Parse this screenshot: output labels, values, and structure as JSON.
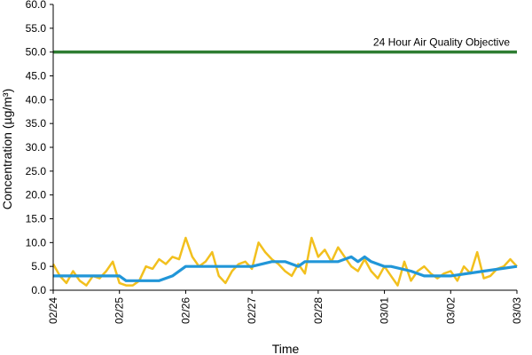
{
  "chart_data": {
    "type": "line",
    "xlabel": "Time",
    "ylabel": "Concentration (µg/m³)",
    "ylim": [
      0,
      60
    ],
    "yticks": [
      "0.0",
      "5.0",
      "10.0",
      "15.0",
      "20.0",
      "25.0",
      "30.0",
      "35.0",
      "40.0",
      "45.0",
      "50.0",
      "55.0",
      "60.0"
    ],
    "xticks": [
      "02/24",
      "02/25",
      "02/26",
      "02/27",
      "02/28",
      "03/01",
      "03/02",
      "03/03"
    ],
    "grid": false,
    "reference_line": {
      "value": 50,
      "label": "24 Hour Air Quality Objective",
      "color": "#2e7d32"
    },
    "series": [
      {
        "color": "#f2c01e",
        "x_days": [
          0.0,
          0.1,
          0.2,
          0.3,
          0.4,
          0.5,
          0.6,
          0.7,
          0.8,
          0.9,
          1.0,
          1.1,
          1.2,
          1.3,
          1.4,
          1.5,
          1.6,
          1.7,
          1.8,
          1.9,
          2.0,
          2.1,
          2.2,
          2.3,
          2.4,
          2.5,
          2.6,
          2.7,
          2.8,
          2.9,
          3.0,
          3.1,
          3.2,
          3.3,
          3.4,
          3.5,
          3.6,
          3.7,
          3.8,
          3.9,
          4.0,
          4.1,
          4.2,
          4.3,
          4.4,
          4.5,
          4.6,
          4.7,
          4.8,
          4.9,
          5.0,
          5.1,
          5.2,
          5.3,
          5.4,
          5.5,
          5.6,
          5.7,
          5.8,
          5.9,
          6.0,
          6.1,
          6.2,
          6.3,
          6.4,
          6.5,
          6.6,
          6.7,
          6.8,
          6.9,
          7.0
        ],
        "values": [
          5.5,
          3.0,
          1.5,
          4.0,
          2.0,
          1.0,
          3.0,
          2.5,
          4.0,
          6.0,
          1.5,
          1.0,
          1.0,
          2.0,
          5.0,
          4.5,
          6.5,
          5.5,
          7.0,
          6.5,
          11.0,
          7.0,
          5.0,
          6.0,
          8.0,
          3.0,
          1.5,
          4.0,
          5.5,
          6.0,
          4.5,
          10.0,
          8.0,
          6.5,
          5.5,
          4.0,
          3.0,
          5.5,
          3.5,
          11.0,
          7.0,
          8.5,
          6.0,
          9.0,
          7.0,
          5.0,
          4.0,
          6.5,
          4.0,
          2.5,
          5.0,
          3.0,
          1.0,
          6.0,
          2.0,
          4.0,
          5.0,
          3.5,
          2.5,
          3.5,
          4.0,
          2.0,
          5.0,
          3.5,
          8.0,
          2.5,
          3.0,
          4.5,
          5.0,
          6.5,
          5.0
        ]
      },
      {
        "color": "#2196d8",
        "x_days": [
          0.0,
          0.5,
          1.0,
          1.1,
          1.6,
          1.8,
          2.0,
          2.5,
          3.0,
          3.3,
          3.5,
          3.7,
          3.8,
          4.0,
          4.3,
          4.5,
          4.6,
          4.7,
          4.8,
          5.0,
          5.1,
          5.4,
          5.6,
          6.0,
          6.5,
          7.0
        ],
        "values": [
          3.0,
          3.0,
          3.0,
          2.0,
          2.0,
          3.0,
          5.0,
          5.0,
          5.0,
          6.0,
          6.0,
          5.0,
          6.0,
          6.0,
          6.0,
          7.0,
          6.0,
          7.0,
          6.0,
          5.0,
          5.0,
          4.0,
          3.0,
          3.0,
          4.0,
          5.0
        ]
      }
    ]
  }
}
